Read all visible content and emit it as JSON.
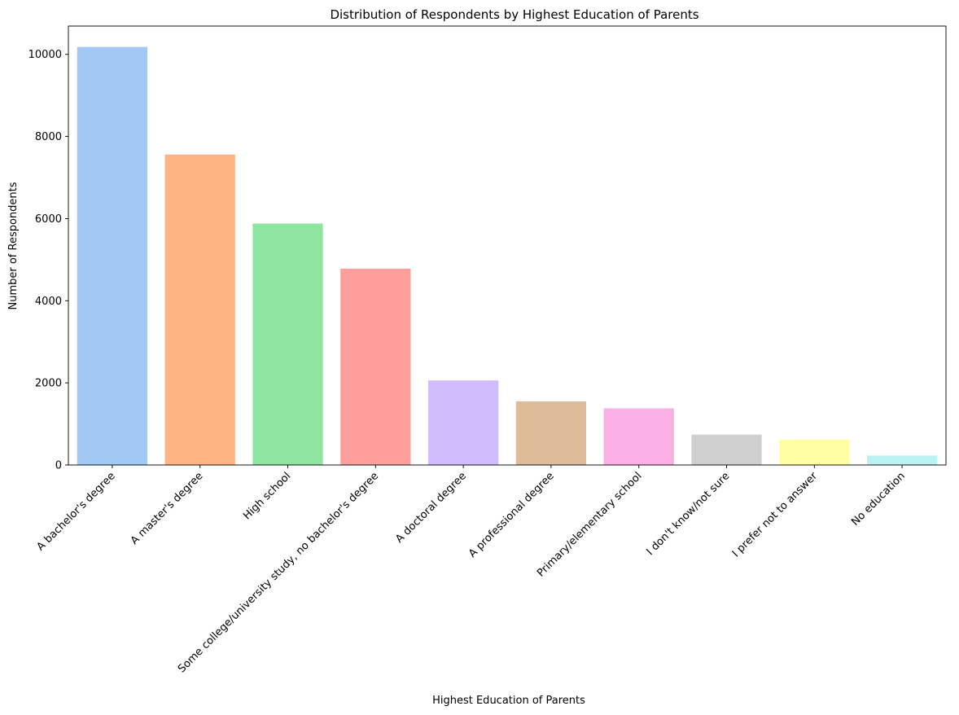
{
  "chart_data": {
    "type": "bar",
    "title": "Distribution of Respondents by Highest Education of Parents",
    "xlabel": "Highest Education of Parents",
    "ylabel": "Number of Respondents",
    "categories": [
      "A bachelor's degree",
      "A master's degree",
      "High school",
      "Some college/university study, no bachelor's degree",
      "A doctoral degree",
      "A professional degree",
      "Primary/elementary school",
      "I don't know/not sure",
      "I prefer not to answer",
      "No education"
    ],
    "values": [
      10180,
      7560,
      5880,
      4780,
      2060,
      1550,
      1380,
      740,
      620,
      230
    ],
    "colors": [
      "#a1c9f4",
      "#ffb482",
      "#8de5a1",
      "#ff9f9b",
      "#d0bbff",
      "#debb9b",
      "#fab0e4",
      "#cfcfcf",
      "#fffea3",
      "#b9f2f0"
    ],
    "ylim": [
      0,
      10689
    ],
    "yticks": [
      0,
      2000,
      4000,
      6000,
      8000,
      10000
    ],
    "grid": false,
    "legend": "none"
  }
}
